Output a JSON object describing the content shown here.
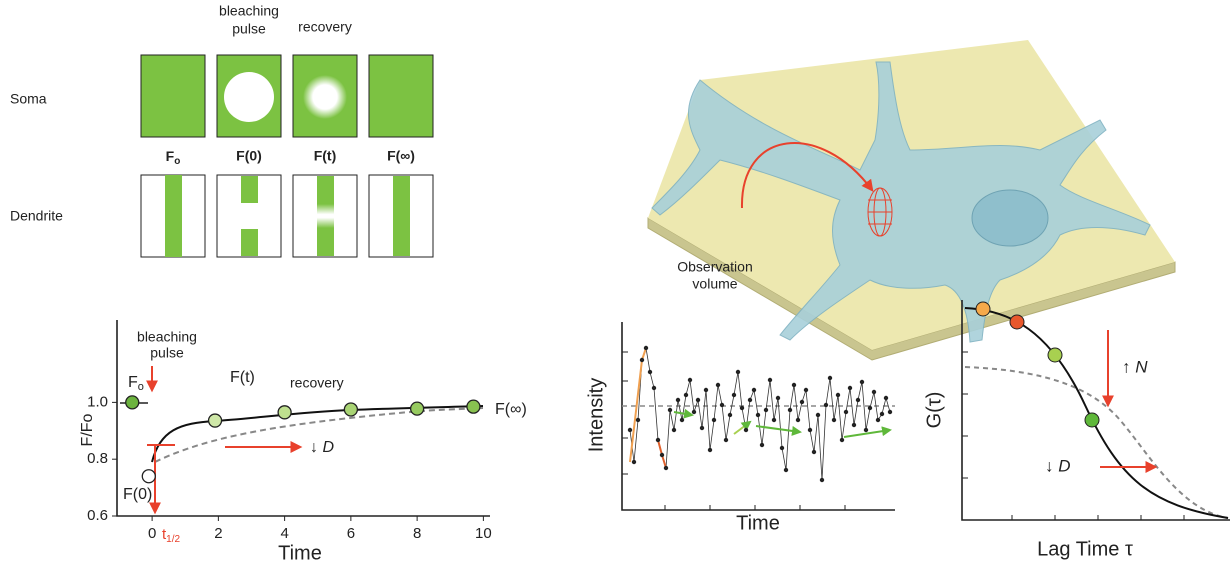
{
  "panel_a": {
    "row_soma": "Soma",
    "row_dendrite": "Dendrite",
    "header_bleaching": [
      "bleaching",
      "pulse"
    ],
    "header_recovery": "recovery",
    "col_f0": {
      "main": "F",
      "sub": "o"
    },
    "col_f_zero": "F(0)",
    "col_f_t": "F(t)",
    "col_f_inf": "F(∞)"
  },
  "panel_b": {
    "label": [
      "Observation",
      "volume"
    ]
  },
  "frap": {
    "type": "line",
    "ylabel": "F/Fo",
    "xlabel": "Time",
    "xlim": [
      -1.06,
      10.2
    ],
    "ylim": [
      0.6,
      1.29
    ],
    "xticks": [
      0,
      2,
      4,
      6,
      8,
      10
    ],
    "yticks": [
      0.6,
      0.8,
      {
        "value": 1,
        "label": "1.0"
      }
    ],
    "x": [
      1.9,
      4,
      6,
      8,
      9.7
    ],
    "values": [
      0.936,
      0.965,
      0.975,
      0.978,
      0.985
    ],
    "colors": [
      "#cfe8a8",
      "#bfe08f",
      "#a9d474",
      "#97cb60",
      "#88c150"
    ],
    "initial": {
      "x": -0.6,
      "value": 1.0,
      "color": "#6cb33f"
    },
    "bleached": {
      "x": -0.1,
      "value": 0.74,
      "color": "#ffffff"
    },
    "ann_bleaching": [
      "bleaching",
      "pulse"
    ],
    "ann_f0": {
      "main": "F",
      "sub": "o"
    },
    "ann_ft": "F(t)",
    "ann_recovery": "recovery",
    "ann_finf": "F(∞)",
    "ann_fzero": "F(0)",
    "ann_half": {
      "main": "t",
      "sub": "1/2"
    },
    "ann_d": "↓ D"
  },
  "fcs_trace": {
    "ylabel": "Intensity",
    "xlabel": "Time"
  },
  "fcs_corr": {
    "ylabel": "G(τ)",
    "xlabel": "Lag Time τ",
    "ann_n": "↑ N",
    "ann_d": "↓ D"
  }
}
